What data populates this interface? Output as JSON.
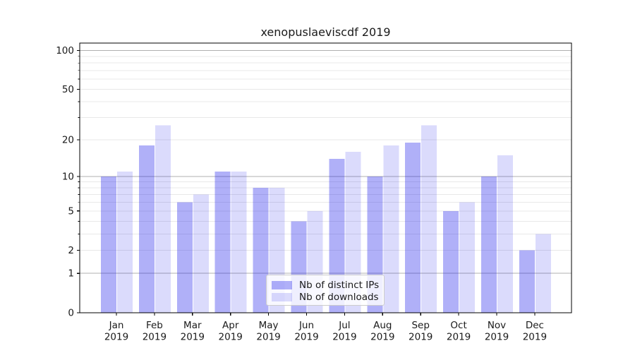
{
  "title": "xenopuslaeviscdf 2019",
  "chart_data": {
    "type": "bar",
    "title": "xenopuslaeviscdf 2019",
    "categories": [
      "Jan",
      "Feb",
      "Mar",
      "Apr",
      "May",
      "Jun",
      "Jul",
      "Aug",
      "Sep",
      "Oct",
      "Nov",
      "Dec"
    ],
    "category_year": "2019",
    "series": [
      {
        "name": "Nb of distinct IPs",
        "values": [
          10,
          18,
          6,
          11,
          8,
          4,
          14,
          10,
          19,
          5,
          10,
          2
        ]
      },
      {
        "name": "Nb of downloads",
        "values": [
          11,
          26,
          7,
          11,
          8,
          5,
          16,
          18,
          26,
          6,
          15,
          3
        ]
      }
    ],
    "yscale": "log(1+x)",
    "ylim": [
      0,
      114
    ],
    "ytick_values": [
      100,
      50,
      20,
      10,
      5,
      2,
      1,
      0
    ],
    "ytick_labels": [
      "100",
      "50",
      "20",
      "10",
      "5",
      "2",
      "1",
      "0"
    ],
    "major_gridline_values": [
      1,
      10,
      100
    ],
    "minor_gridline_values": [
      2,
      3,
      4,
      5,
      6,
      7,
      8,
      9,
      20,
      30,
      40,
      50,
      60,
      70,
      80,
      90
    ],
    "grid": true,
    "legend_position": "lower center"
  },
  "legend": {
    "items": [
      {
        "label": "Nb of distinct IPs",
        "color": "rgba(30,30,235,0.35)"
      },
      {
        "label": "Nb of downloads",
        "color": "rgba(30,30,235,0.16)"
      }
    ]
  },
  "colors": {
    "ips_bar": "rgba(30,30,235,0.35)",
    "downloads_bar": "rgba(30,30,235,0.16)",
    "grid_major": "#b0b0b0",
    "grid_minor": "#e8e8e8",
    "axis": "#000000",
    "text": "#1a1a1a"
  }
}
